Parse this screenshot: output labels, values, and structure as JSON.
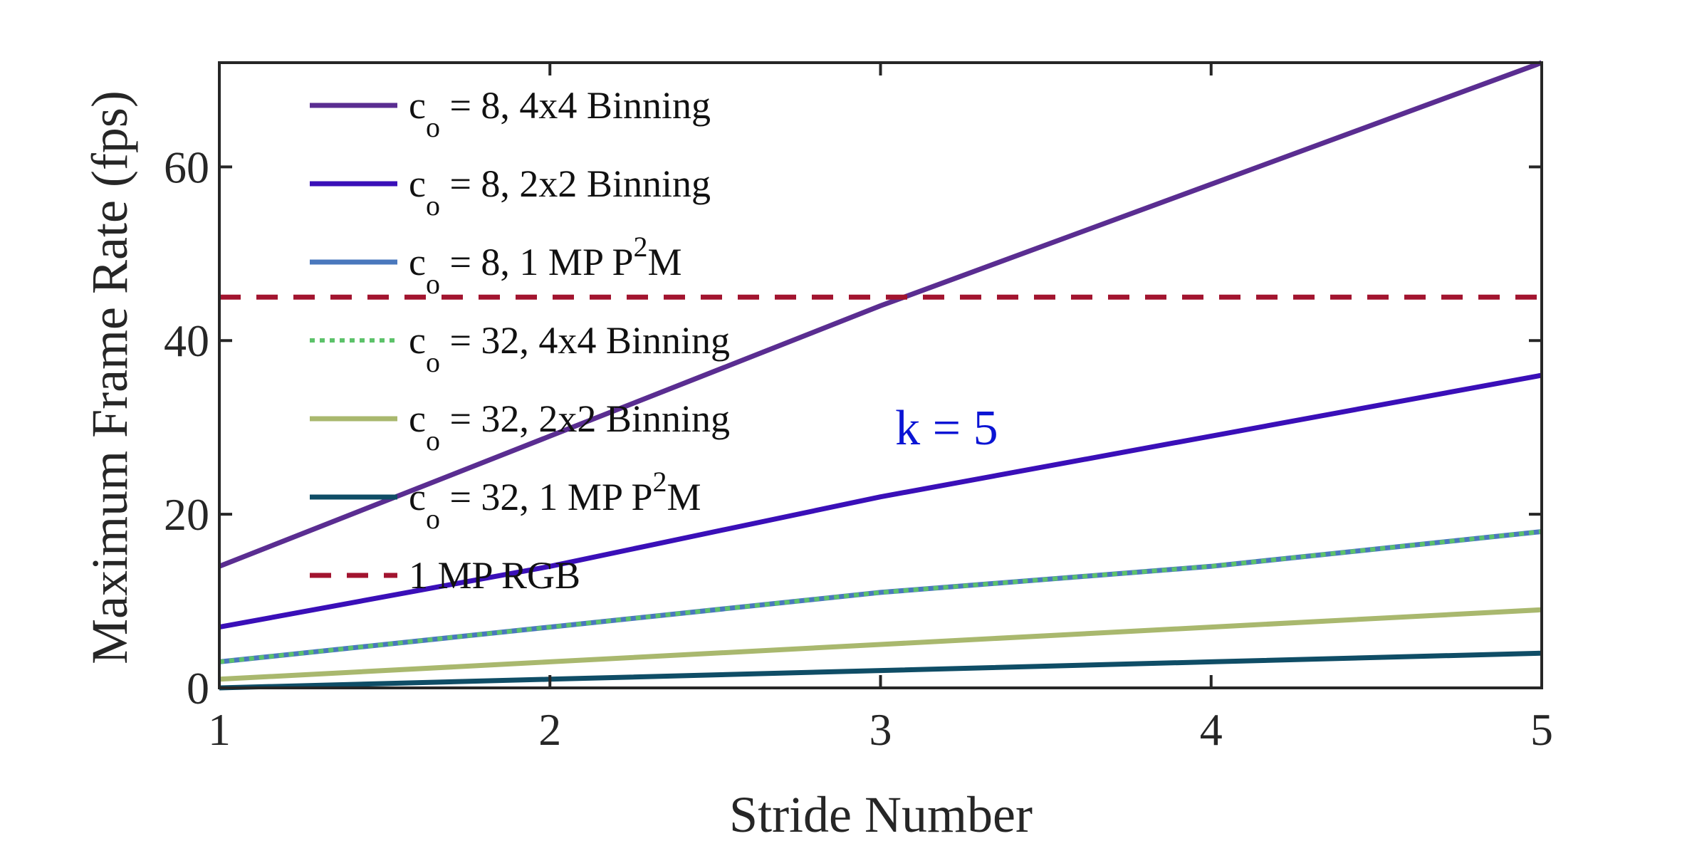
{
  "chart_data": {
    "type": "line",
    "title": "",
    "xlabel": "Stride Number",
    "ylabel": "Maximum Frame Rate (fps)",
    "x": [
      1,
      2,
      3,
      4,
      5
    ],
    "xlim": [
      1,
      5
    ],
    "ylim": [
      0,
      72
    ],
    "xticks": [
      1,
      2,
      3,
      4,
      5
    ],
    "yticks": [
      0,
      20,
      40,
      60
    ],
    "xtick_labels": [
      "1",
      "2",
      "3",
      "4",
      "5"
    ],
    "ytick_labels": [
      "0",
      "20",
      "40",
      "60"
    ],
    "grid": false,
    "legend_position": "top-left",
    "series": [
      {
        "name": "c = 8, 4x4 Binning",
        "c_sub": "o",
        "label_main": " = 8, 4x4 Binning",
        "label_sup": "",
        "label_tail": "",
        "color": "#5a2d91",
        "style": "solid",
        "values": [
          14,
          29,
          44,
          58,
          72
        ]
      },
      {
        "name": "c = 8, 2x2 Binning",
        "c_sub": "o",
        "label_main": " = 8, 2x2 Binning",
        "label_sup": "",
        "label_tail": "",
        "color": "#3a0fb8",
        "style": "solid",
        "values": [
          7,
          14,
          22,
          29,
          36
        ]
      },
      {
        "name": "c = 8, 1 MP P2M",
        "c_sub": "o",
        "label_main": " = 8, 1 MP P",
        "label_sup": "2",
        "label_tail": "M",
        "color": "#4a78bd",
        "style": "solid",
        "values": [
          3,
          7,
          11,
          14,
          18
        ]
      },
      {
        "name": "c = 32, 4x4 Binning",
        "c_sub": "o",
        "label_main": " = 32, 4x4 Binning",
        "label_sup": "",
        "label_tail": "",
        "color": "#5cc26a",
        "style": "dotted",
        "values": [
          3,
          7,
          11,
          14,
          18
        ]
      },
      {
        "name": "c = 32, 2x2 Binning",
        "c_sub": "o",
        "label_main": " = 32, 2x2 Binning",
        "label_sup": "",
        "label_tail": "",
        "color": "#a9b86e",
        "style": "solid",
        "values": [
          1,
          3,
          5,
          7,
          9
        ]
      },
      {
        "name": "c = 32, 1 MP P2M",
        "c_sub": "o",
        "label_main": " = 32, 1 MP P",
        "label_sup": "2",
        "label_tail": "M",
        "color": "#0f4d66",
        "style": "solid",
        "values": [
          0,
          1,
          2,
          3,
          4
        ]
      },
      {
        "name": "1 MP RGB",
        "c_sub": "",
        "label_main": "1 MP RGB",
        "label_sup": "",
        "label_tail": "",
        "color": "#a2142f",
        "style": "dashed",
        "values": [
          45,
          45,
          45,
          45,
          45
        ]
      }
    ],
    "annotations": [
      {
        "text": "k = 5",
        "x": 3.2,
        "y": 30,
        "color": "#0a14d4"
      }
    ]
  }
}
